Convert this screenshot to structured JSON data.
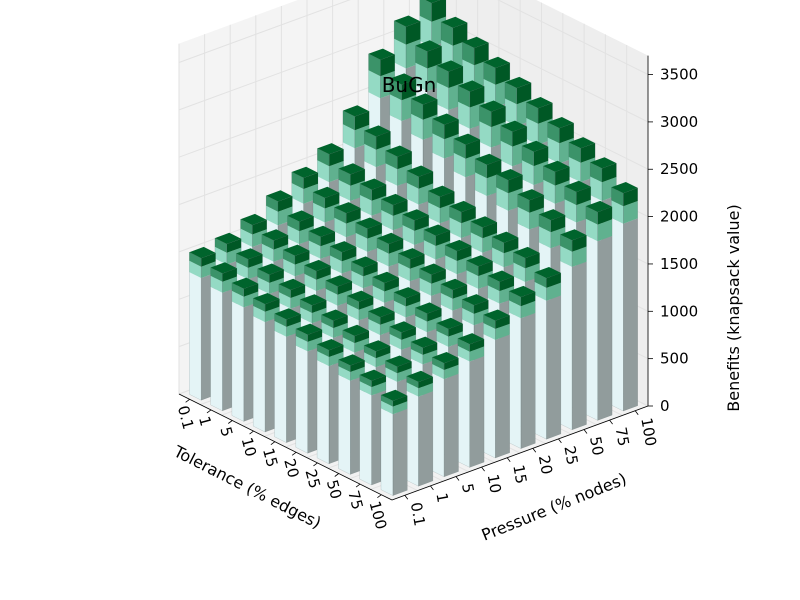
{
  "chart_data": {
    "type": "bar3d",
    "title": "BuGn",
    "colormap": "BuGn",
    "xlabel": "Tolerance (% edges)",
    "ylabel": "Pressure (% nodes)",
    "zlabel": "Benefits (knapsack value)",
    "x_categories": [
      "0.1",
      "1",
      "5",
      "10",
      "15",
      "20",
      "25",
      "50",
      "75",
      "100"
    ],
    "y_categories": [
      "0.1",
      "1",
      "5",
      "10",
      "15",
      "20",
      "25",
      "50",
      "75",
      "100"
    ],
    "z_ticks": [
      "0",
      "500",
      "1000",
      "1500",
      "2000",
      "2500",
      "3000",
      "3500"
    ],
    "zlim": [
      0,
      3700
    ],
    "grid": true,
    "values": [
      [
        1500,
        1550,
        1650,
        1800,
        1950,
        2100,
        2400,
        2900,
        3150,
        3300
      ],
      [
        1450,
        1500,
        1600,
        1700,
        1850,
        2000,
        2300,
        2750,
        3000,
        3150
      ],
      [
        1400,
        1450,
        1550,
        1650,
        1800,
        1950,
        2200,
        2650,
        2900,
        3050
      ],
      [
        1350,
        1400,
        1500,
        1600,
        1750,
        1900,
        2100,
        2550,
        2800,
        2950
      ],
      [
        1300,
        1350,
        1450,
        1550,
        1700,
        1850,
        2000,
        2450,
        2700,
        2850
      ],
      [
        1250,
        1300,
        1400,
        1500,
        1650,
        1800,
        1950,
        2350,
        2600,
        2750
      ],
      [
        1200,
        1250,
        1350,
        1450,
        1600,
        1750,
        1900,
        2300,
        2500,
        2650
      ],
      [
        1150,
        1200,
        1300,
        1400,
        1550,
        1700,
        1850,
        2200,
        2400,
        2550
      ],
      [
        1100,
        1150,
        1250,
        1350,
        1500,
        1650,
        1800,
        2100,
        2300,
        2450
      ],
      [
        1000,
        1100,
        1200,
        1300,
        1450,
        1600,
        1700,
        2000,
        2200,
        2300
      ]
    ]
  }
}
